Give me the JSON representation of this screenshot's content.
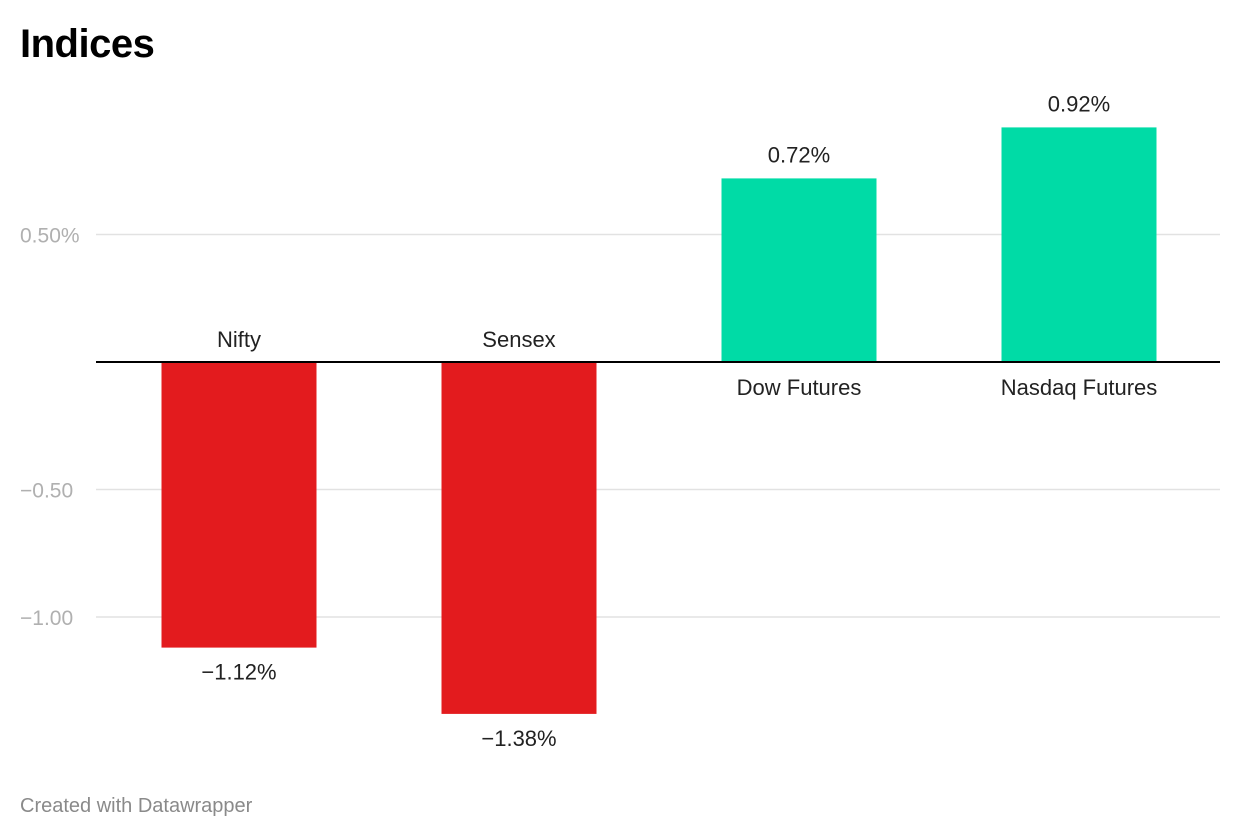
{
  "chart_data": {
    "type": "bar",
    "title": "Indices",
    "categories": [
      "Nifty",
      "Sensex",
      "Dow Futures",
      "Nasdaq Futures"
    ],
    "values": [
      -1.12,
      -1.38,
      0.72,
      0.92
    ],
    "value_labels": [
      "−1.12%",
      "−1.38%",
      "0.72%",
      "0.92%"
    ],
    "y_ticks": [
      {
        "value": 0.5,
        "label": "0.50%"
      },
      {
        "value": -0.5,
        "label": "−0.50"
      },
      {
        "value": -1.0,
        "label": "−1.00"
      }
    ],
    "ylim": [
      -1.5,
      1.0
    ],
    "grid": true,
    "xlabel": "",
    "ylabel": "",
    "colors": {
      "negative": "#e31b1e",
      "positive": "#00dba6",
      "gridline": "#e2e2e2",
      "baseline": "#000000"
    }
  },
  "footer": {
    "credit": "Created with Datawrapper"
  }
}
